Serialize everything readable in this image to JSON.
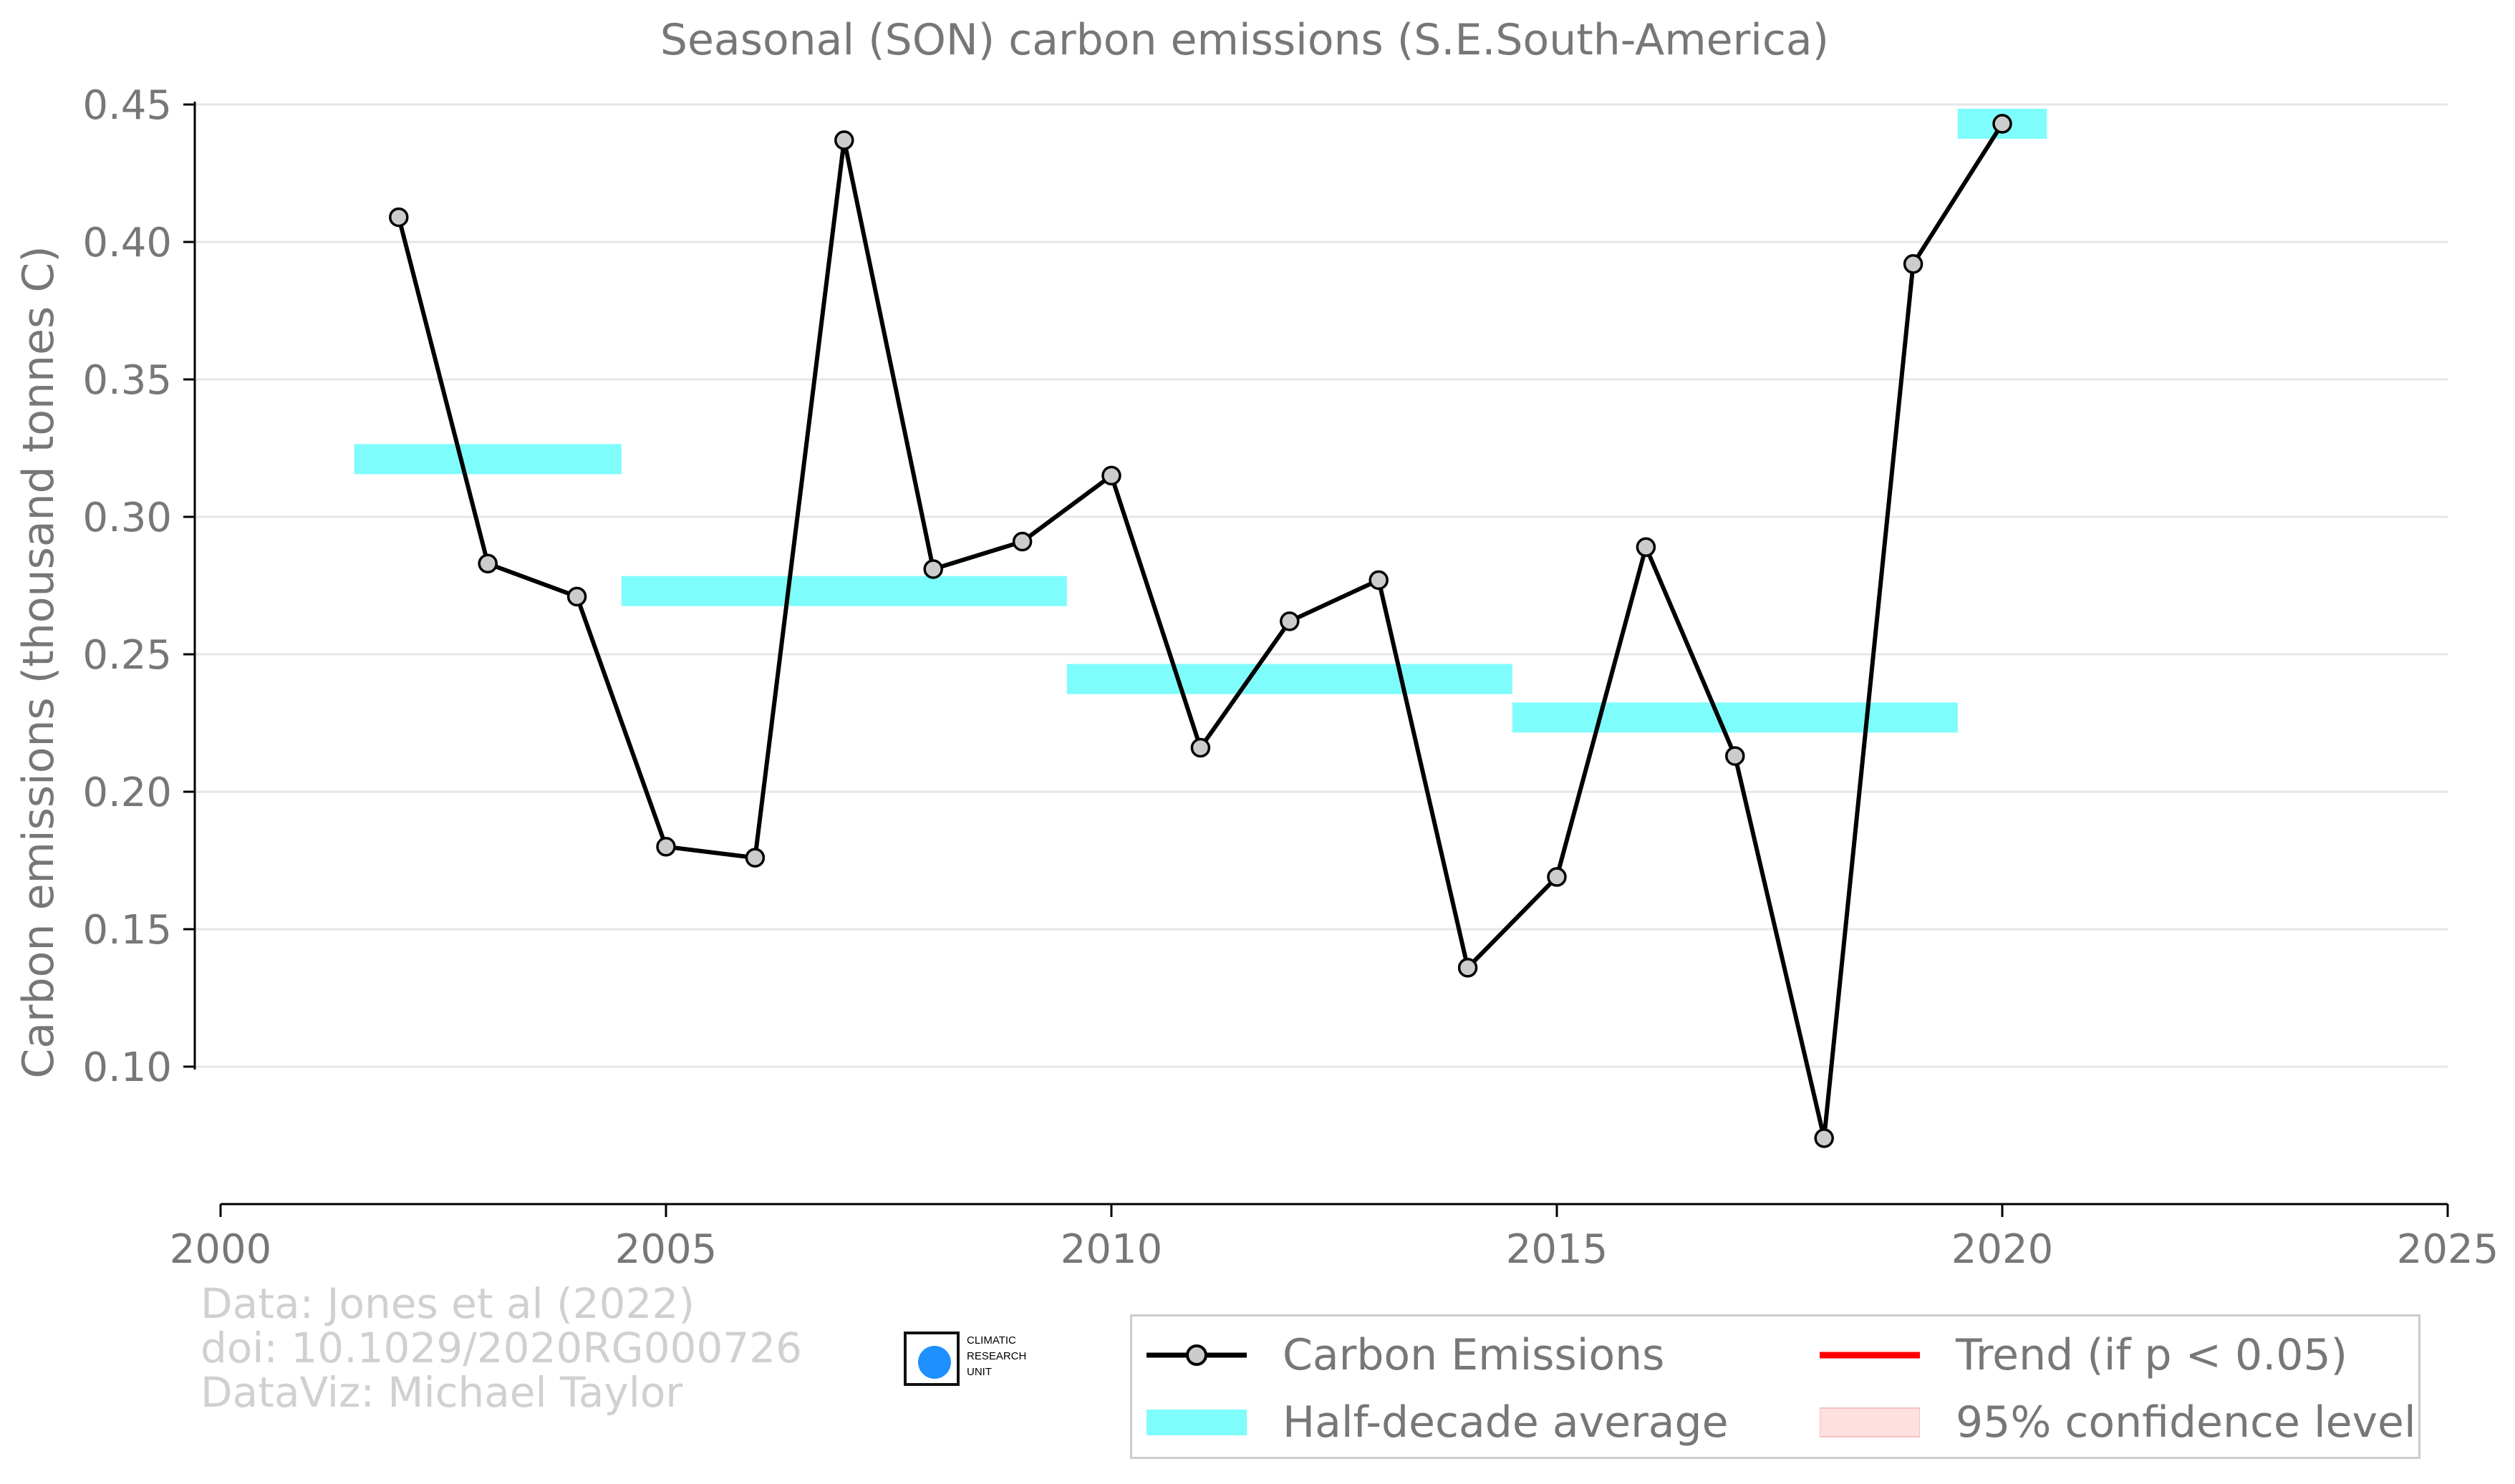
{
  "chart_data": {
    "type": "line",
    "title": "Seasonal (SON) carbon emissions (S.E.South-America)",
    "xlabel": "",
    "ylabel": "Carbon emissions (thousand tonnes C)",
    "xlim": [
      2000,
      2025
    ],
    "ylim": [
      0.05,
      0.45
    ],
    "xticks": [
      2000,
      2005,
      2010,
      2015,
      2020,
      2025
    ],
    "yticks": [
      0.1,
      0.15,
      0.2,
      0.25,
      0.3,
      0.35,
      0.4,
      0.45
    ],
    "ytick_labels": [
      "0.10",
      "0.15",
      "0.20",
      "0.25",
      "0.30",
      "0.35",
      "0.40",
      "0.45"
    ],
    "grid": "horizontal",
    "legend_position": "bottom-right",
    "series": [
      {
        "name": "Carbon Emissions",
        "color": "#000000",
        "marker_fill": "#cccccc",
        "x": [
          2002,
          2003,
          2004,
          2005,
          2006,
          2007,
          2008,
          2009,
          2010,
          2011,
          2012,
          2013,
          2014,
          2015,
          2016,
          2017,
          2018,
          2019,
          2020
        ],
        "y": [
          0.409,
          0.283,
          0.271,
          0.18,
          0.176,
          0.437,
          0.281,
          0.291,
          0.315,
          0.216,
          0.262,
          0.277,
          0.136,
          0.169,
          0.289,
          0.213,
          0.074,
          0.392,
          0.443
        ]
      }
    ],
    "half_decade_average": {
      "name": "Half-decade average",
      "color": "#7ffcfc",
      "segments": [
        {
          "x": [
            2001.5,
            2004.5
          ],
          "y": 0.321
        },
        {
          "x": [
            2004.5,
            2009.5
          ],
          "y": 0.273
        },
        {
          "x": [
            2009.5,
            2014.5
          ],
          "y": 0.241
        },
        {
          "x": [
            2014.5,
            2019.5
          ],
          "y": 0.227
        },
        {
          "x": [
            2019.5,
            2020.5
          ],
          "y": 0.443
        }
      ]
    },
    "legend": [
      {
        "label": "Carbon Emissions",
        "kind": "line-marker",
        "color": "#000000"
      },
      {
        "label": "Trend (if p < 0.05)",
        "kind": "line",
        "color": "#ff0000"
      },
      {
        "label": "Half-decade average",
        "kind": "band",
        "color": "#7ffcfc"
      },
      {
        "label": "95% confidence level",
        "kind": "band",
        "color": "#ffe0e0"
      }
    ]
  },
  "credits": {
    "line1": "Data: Jones et al (2022)",
    "line2": "doi: 10.1029/2020RG000726",
    "line3": "DataViz: Michael Taylor"
  },
  "logo": {
    "icon": "globe-icon",
    "line1": "CLIMATIC",
    "line2": "RESEARCH",
    "line3": "UNIT"
  }
}
